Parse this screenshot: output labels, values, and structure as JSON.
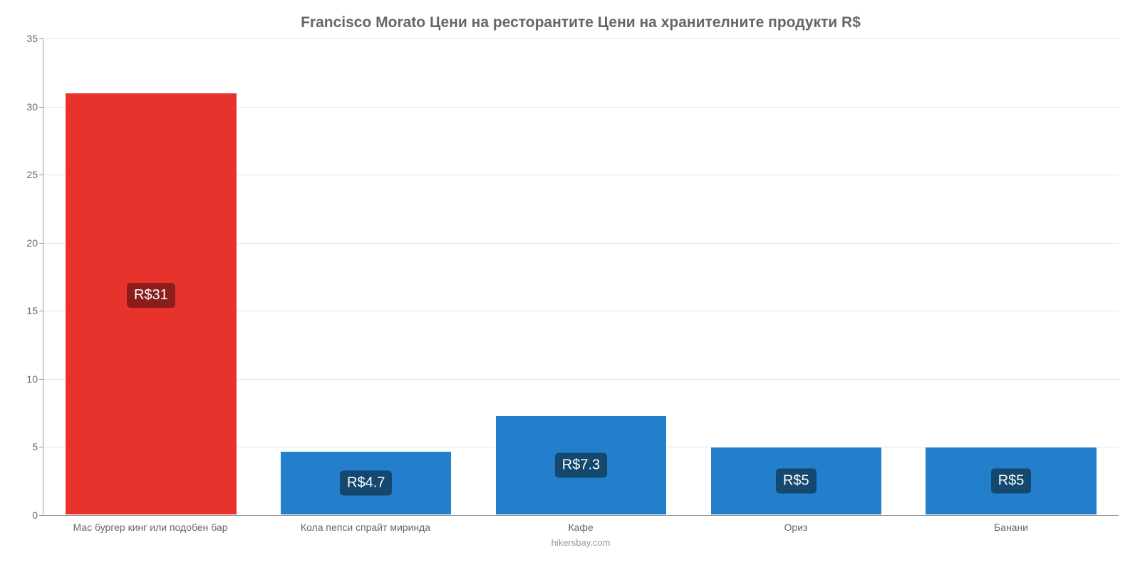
{
  "chart": {
    "type": "bar",
    "title": "Francisco Morato Цени на ресторантите Цени на хранителните продукти R$",
    "title_fontsize": 21,
    "title_color": "#666666",
    "background_color": "#ffffff",
    "grid_color": "#e5e5e5",
    "axis_color": "#999999",
    "label_color": "#666666",
    "label_fontsize": 14,
    "ylim": [
      0,
      35
    ],
    "ytick_step": 5,
    "yticks": [
      0,
      5,
      10,
      15,
      20,
      25,
      30,
      35
    ],
    "bar_width_pct": 80,
    "categories": [
      "Мас бургер кинг или подобен бар",
      "Кола пепси спрайт миринда",
      "Кафе",
      "Ориз",
      "Банани"
    ],
    "values": [
      31,
      4.7,
      7.3,
      5,
      5
    ],
    "value_labels": [
      "R$31",
      "R$4.7",
      "R$7.3",
      "R$5",
      "R$5"
    ],
    "bar_colors": [
      "#e8332d",
      "#237fcb",
      "#237fcb",
      "#237fcb",
      "#237fcb"
    ],
    "badge_colors": [
      "#8b1d1a",
      "#14486f",
      "#14486f",
      "#14486f",
      "#14486f"
    ],
    "badge_text_color": "#ffffff",
    "footer": "hikersbay.com",
    "footer_color": "#999999"
  }
}
